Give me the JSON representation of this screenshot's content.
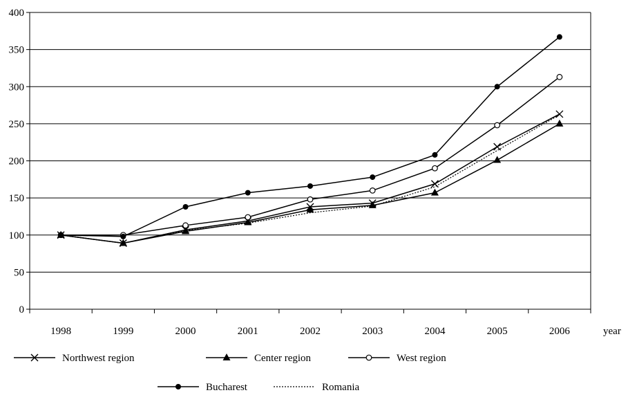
{
  "chart_data": {
    "type": "line",
    "title": "",
    "xlabel": "year",
    "ylabel": "",
    "ylim": [
      0,
      400
    ],
    "y_ticks": [
      "0",
      "50",
      "100",
      "150",
      "200",
      "250",
      "300",
      "350",
      "400"
    ],
    "categories": [
      "1998",
      "1999",
      "2000",
      "2001",
      "2002",
      "2003",
      "2004",
      "2005",
      "2006"
    ],
    "grid": "horizontal",
    "legend_position": "bottom",
    "series": [
      {
        "name": "Northwest region",
        "marker": "x",
        "line": "solid",
        "values": [
          100,
          89,
          107,
          119,
          138,
          143,
          169,
          219,
          263
        ]
      },
      {
        "name": "Center region",
        "marker": "triangle",
        "line": "solid",
        "values": [
          100,
          89,
          105,
          117,
          134,
          140,
          157,
          201,
          250
        ]
      },
      {
        "name": "West region",
        "marker": "open-circle",
        "line": "solid",
        "values": [
          100,
          100,
          113,
          124,
          148,
          160,
          190,
          248,
          313
        ]
      },
      {
        "name": "Bucharest",
        "marker": "filled-circle",
        "line": "solid",
        "values": [
          100,
          98,
          138,
          157,
          166,
          178,
          208,
          300,
          367
        ]
      },
      {
        "name": "Romania",
        "marker": "none",
        "line": "dotted",
        "values": [
          100,
          89,
          106,
          116,
          130,
          139,
          165,
          214,
          262
        ]
      }
    ]
  }
}
